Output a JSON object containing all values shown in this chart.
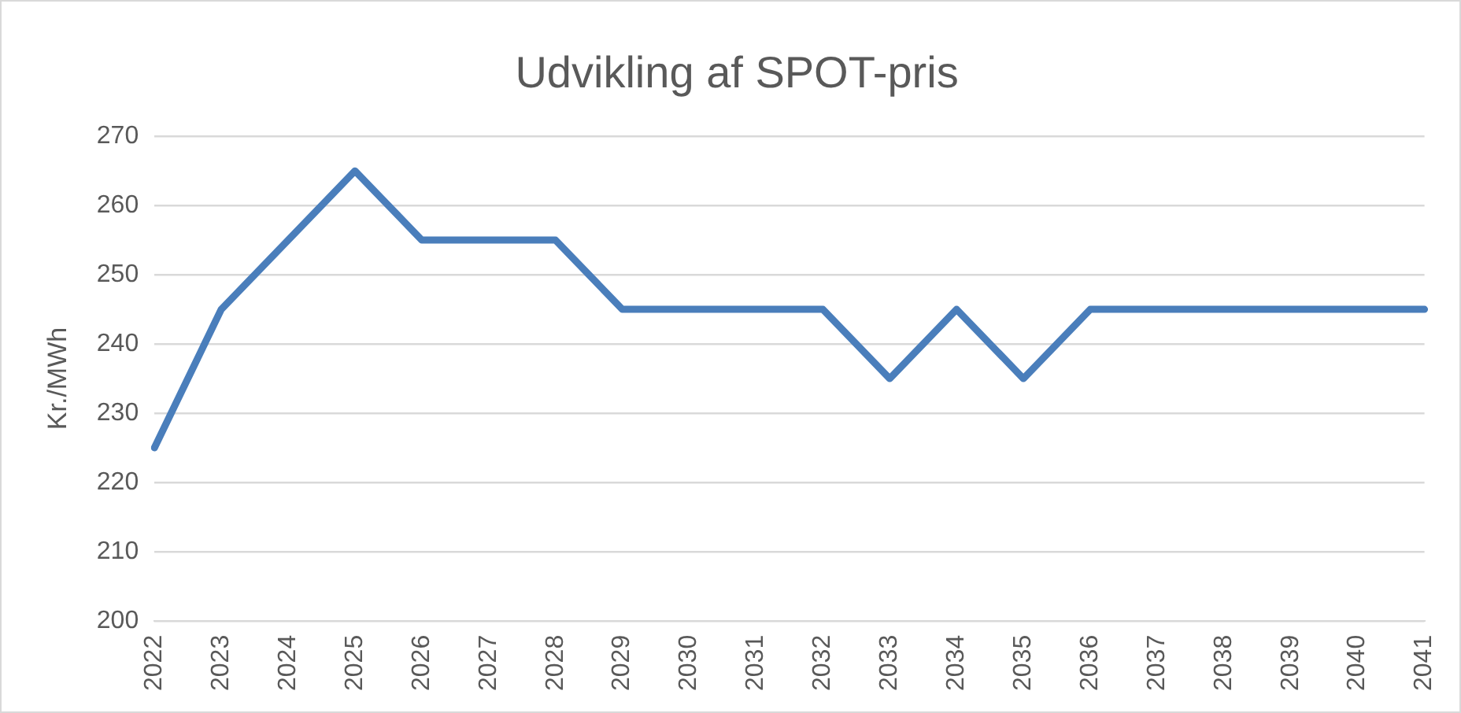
{
  "chart_data": {
    "type": "line",
    "title": "Udvikling af SPOT-pris",
    "ylabel": "Kr./MWh",
    "categories": [
      "2022",
      "2023",
      "2024",
      "2025",
      "2026",
      "2027",
      "2028",
      "2029",
      "2030",
      "2031",
      "2032",
      "2033",
      "2034",
      "2035",
      "2036",
      "2037",
      "2038",
      "2039",
      "2040",
      "2041"
    ],
    "series": [
      {
        "color": "#4a7ebb",
        "values": [
          225,
          245,
          255,
          265,
          255,
          255,
          255,
          245,
          245,
          245,
          245,
          235,
          245,
          235,
          245,
          245,
          245,
          245,
          245,
          245
        ]
      }
    ],
    "ylim": [
      200,
      270
    ],
    "yticks": [
      200,
      210,
      220,
      230,
      240,
      250,
      260,
      270
    ],
    "grid": "y",
    "legend": false,
    "marker": "none",
    "line_style": "solid"
  }
}
